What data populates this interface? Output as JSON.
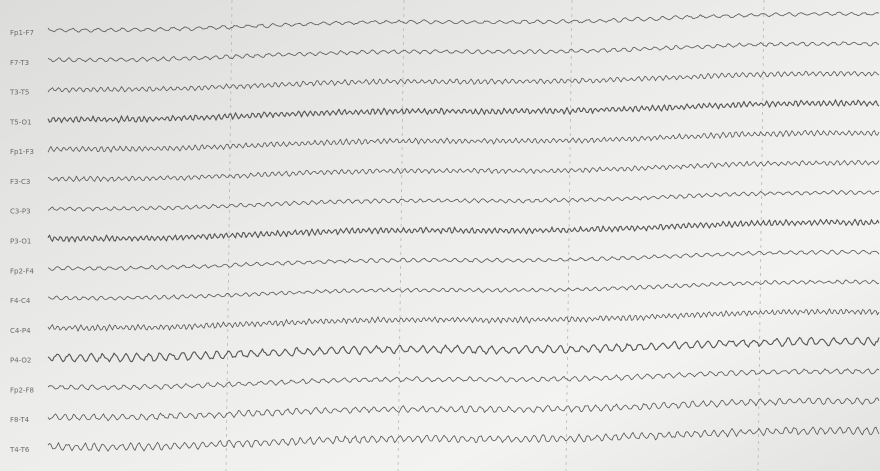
{
  "channels": [
    "Fp1-F7",
    "F7-T3",
    "T3-T5",
    "T5-O1",
    "Fp1-F3",
    "F3-C3",
    "C3-P3",
    "P3-O1",
    "Fp2-F4",
    "F4-C4",
    "C4-P4",
    "P4-O2",
    "Fp2-F8",
    "F8-T4",
    "T4-T6"
  ]
}
